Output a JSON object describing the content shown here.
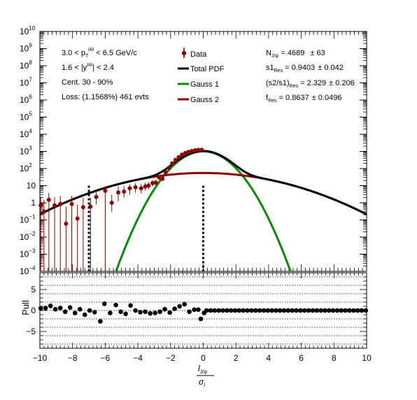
{
  "chart_data": [
    {
      "type": "scatter",
      "panel": "main",
      "yscale": "log",
      "xlim": [
        -10,
        10
      ],
      "ylim": [
        0.0001,
        10000000000
      ],
      "x_ticks": [
        "−10",
        "−8",
        "−6",
        "−4",
        "−2",
        "0",
        "2",
        "4",
        "6",
        "8",
        "10"
      ],
      "y_ticks": [
        {
          "base": "10",
          "exp": "−4"
        },
        {
          "base": "10",
          "exp": "−3"
        },
        {
          "base": "10",
          "exp": "−2"
        },
        {
          "base": "10",
          "exp": "−1"
        },
        {
          "base": "1",
          "exp": ""
        },
        {
          "base": "10",
          "exp": ""
        },
        {
          "base": "10",
          "exp": "2"
        },
        {
          "base": "10",
          "exp": "3"
        },
        {
          "base": "10",
          "exp": "4"
        },
        {
          "base": "10",
          "exp": "5"
        },
        {
          "base": "10",
          "exp": "6"
        },
        {
          "base": "10",
          "exp": "7"
        },
        {
          "base": "10",
          "exp": "8"
        },
        {
          "base": "10",
          "exp": "9"
        },
        {
          "base": "10",
          "exp": "10"
        }
      ],
      "info_text": [
        {
          "pre": "3.0 < p",
          "sub": "T",
          "sup": "μμ",
          "post": " < 6.5 GeV/c"
        },
        {
          "pre": "1.6 < |y",
          "sub": "",
          "sup": "μμ",
          "post": "| < 2.4"
        },
        {
          "pre": "Cent. 30 - 90%",
          "sub": "",
          "sup": "",
          "post": ""
        },
        {
          "pre": "Loss: (1.1568%) 461 evts",
          "sub": "",
          "sup": "",
          "post": ""
        }
      ],
      "legend": [
        "Data",
        "Total PDF",
        "Gauss 1",
        "Gauss 2"
      ],
      "fit_results": [
        {
          "name": "N",
          "sub": "J/ψ",
          "value": " = 4689",
          "err": "±  63"
        },
        {
          "name": "s1",
          "sub": "Res",
          "value": " = 0.9403",
          "err": "± 0.042"
        },
        {
          "name": "(s2/s1)",
          "sub": "Res",
          "value": " = 2.329",
          "err": "± 0.206"
        },
        {
          "name": "f",
          "sub": "Res",
          "value": " = 0.8637",
          "err": "± 0.0496"
        }
      ],
      "colors": {
        "data": "#8b0000",
        "total": "#000000",
        "gauss1": "#0a8a0a",
        "gauss2": "#8b0000"
      },
      "cut_lines_x": [
        -7,
        0
      ],
      "curves": {
        "N": 1160,
        "frac1": 0.8637,
        "sigma1": 0.9403,
        "sigma2": 2.19,
        "tail_N": 55,
        "tail_sigma": 3.0
      },
      "data_points": [
        {
          "x": -9.95,
          "y": 0.7,
          "lo": 0.0001,
          "hi": 2.2
        },
        {
          "x": -9.75,
          "y": 0.3,
          "lo": 0.0001,
          "hi": 1.5
        },
        {
          "x": -9.45,
          "y": 1.5,
          "lo": 0.0001,
          "hi": 3.8
        },
        {
          "x": -9.1,
          "y": 0.7,
          "lo": 0.0001,
          "hi": 2.2
        },
        {
          "x": -8.75,
          "y": 0.85,
          "lo": 0.0001,
          "hi": 2.5
        },
        {
          "x": -8.4,
          "y": 0.06,
          "lo": 0.0001,
          "hi": 0.6
        },
        {
          "x": -8.05,
          "y": 0.85,
          "lo": 0.0001,
          "hi": 2.5
        },
        {
          "x": -7.7,
          "y": 0.12,
          "lo": 0.0001,
          "hi": 0.8
        },
        {
          "x": -7.35,
          "y": 0.55,
          "lo": 0.0001,
          "hi": 2.0
        },
        {
          "x": -6.9,
          "y": 0.6,
          "lo": 0.0001,
          "hi": 2.0
        },
        {
          "x": -6.55,
          "y": 2.2,
          "lo": 0.8,
          "hi": 5
        },
        {
          "x": -6.0,
          "y": 5,
          "lo": 0.0001,
          "hi": 9
        },
        {
          "x": -5.6,
          "y": 1.0,
          "lo": 0.3,
          "hi": 3
        },
        {
          "x": -5.2,
          "y": 4,
          "lo": 1.2,
          "hi": 9
        },
        {
          "x": -4.85,
          "y": 4.5,
          "lo": 2,
          "hi": 9
        },
        {
          "x": -4.5,
          "y": 7,
          "lo": 3,
          "hi": 12
        },
        {
          "x": -4.15,
          "y": 8,
          "lo": 4,
          "hi": 14
        },
        {
          "x": -3.8,
          "y": 7,
          "lo": 3.5,
          "hi": 13
        },
        {
          "x": -3.55,
          "y": 9,
          "lo": 5,
          "hi": 15
        },
        {
          "x": -3.35,
          "y": 10,
          "lo": 6,
          "hi": 16
        },
        {
          "x": -3.1,
          "y": 14,
          "lo": 9,
          "hi": 21
        },
        {
          "x": -2.9,
          "y": 15,
          "lo": 10,
          "hi": 22
        },
        {
          "x": -2.7,
          "y": 30,
          "lo": 22,
          "hi": 40
        },
        {
          "x": -2.5,
          "y": 25,
          "lo": 18,
          "hi": 34
        },
        {
          "x": -2.3,
          "y": 60,
          "lo": 48,
          "hi": 75
        },
        {
          "x": -2.1,
          "y": 110,
          "lo": 94,
          "hi": 130
        },
        {
          "x": -1.9,
          "y": 200,
          "lo": 178,
          "hi": 225
        },
        {
          "x": -1.7,
          "y": 320,
          "lo": 290,
          "hi": 350
        },
        {
          "x": -1.5,
          "y": 460,
          "lo": 420,
          "hi": 500
        },
        {
          "x": -1.3,
          "y": 640,
          "lo": 590,
          "hi": 690
        },
        {
          "x": -1.1,
          "y": 800,
          "lo": 745,
          "hi": 860
        },
        {
          "x": -0.9,
          "y": 930,
          "lo": 870,
          "hi": 990
        },
        {
          "x": -0.7,
          "y": 1050,
          "lo": 985,
          "hi": 1115
        },
        {
          "x": -0.5,
          "y": 1150,
          "lo": 1082,
          "hi": 1220
        },
        {
          "x": -0.3,
          "y": 1220,
          "lo": 1150,
          "hi": 1290
        },
        {
          "x": -0.1,
          "y": 1230,
          "lo": 1160,
          "hi": 1300
        }
      ],
      "xlabel": "",
      "ylabel": ""
    },
    {
      "type": "scatter",
      "panel": "pull",
      "xlim": [
        -10,
        10
      ],
      "ylim": [
        -9,
        9
      ],
      "ylabel": "Pull",
      "x_axis_label": {
        "num": "l",
        "num_sub": "J/ψ",
        "den": "σ",
        "den_sub": "l"
      },
      "y_ticks": [
        "−5",
        "0",
        "5"
      ],
      "gridlines": [
        -8,
        -6,
        -4,
        -2,
        0,
        2,
        4,
        6,
        8
      ],
      "points": [
        {
          "x": -9.95,
          "y": 0.5
        },
        {
          "x": -9.65,
          "y": 0.6
        },
        {
          "x": -9.35,
          "y": 1.1
        },
        {
          "x": -9.05,
          "y": 0.3
        },
        {
          "x": -8.75,
          "y": 0.6
        },
        {
          "x": -8.45,
          "y": -0.3
        },
        {
          "x": -8.15,
          "y": 0.7
        },
        {
          "x": -7.85,
          "y": -0.6
        },
        {
          "x": -7.55,
          "y": 0.3
        },
        {
          "x": -7.25,
          "y": -1.0
        },
        {
          "x": -6.95,
          "y": 0.0
        },
        {
          "x": -6.65,
          "y": -0.4
        },
        {
          "x": -6.3,
          "y": -2.6
        },
        {
          "x": -6.05,
          "y": 1.6
        },
        {
          "x": -5.7,
          "y": -0.6
        },
        {
          "x": -5.35,
          "y": 1.3
        },
        {
          "x": -5.05,
          "y": -0.3
        },
        {
          "x": -4.75,
          "y": -0.8
        },
        {
          "x": -4.45,
          "y": 1.2
        },
        {
          "x": -4.15,
          "y": 0.0
        },
        {
          "x": -3.85,
          "y": -0.4
        },
        {
          "x": -3.55,
          "y": -0.3
        },
        {
          "x": -3.25,
          "y": -0.7
        },
        {
          "x": -2.95,
          "y": -0.6
        },
        {
          "x": -2.65,
          "y": -0.3
        },
        {
          "x": -2.35,
          "y": 0.3
        },
        {
          "x": -2.05,
          "y": -0.5
        },
        {
          "x": -1.75,
          "y": 0.4
        },
        {
          "x": -1.45,
          "y": 1.0
        },
        {
          "x": -1.15,
          "y": 1.5
        },
        {
          "x": -0.85,
          "y": -0.3
        },
        {
          "x": -0.55,
          "y": 0.2
        },
        {
          "x": -0.3,
          "y": 0.2
        },
        {
          "x": -0.15,
          "y": -2.0
        },
        {
          "x": 0.05,
          "y": -0.6
        }
      ],
      "zero_start": 0.2,
      "zero_end": 10,
      "zero_step": 0.25
    }
  ]
}
